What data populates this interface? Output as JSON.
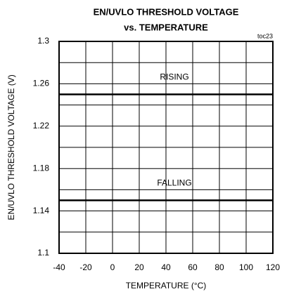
{
  "chart_data": {
    "type": "line",
    "title": "EN/UVLO THRESHOLD VOLTAGE",
    "subtitle": "vs. TEMPERATURE",
    "annotation": "toc23",
    "x_label": "TEMPERATURE (°C)",
    "y_label": "EN/UVLO THRESHOLD VOLTAGE (V)",
    "x": [
      -40,
      120
    ],
    "series": [
      {
        "name": "RISING",
        "color": "#000000",
        "values": [
          1.25,
          1.25
        ]
      },
      {
        "name": "FALLING",
        "color": "#000000",
        "values": [
          1.15,
          1.15
        ]
      }
    ],
    "xlim": [
      -40,
      120
    ],
    "xticks": [
      -40,
      -20,
      0,
      20,
      40,
      60,
      80,
      100,
      120
    ],
    "ylim": [
      1.1,
      1.3
    ],
    "yticks": [
      1.1,
      1.14,
      1.18,
      1.22,
      1.26,
      1.3
    ],
    "yminor": [
      1.12,
      1.16,
      1.2,
      1.24,
      1.28
    ],
    "grid": true
  }
}
